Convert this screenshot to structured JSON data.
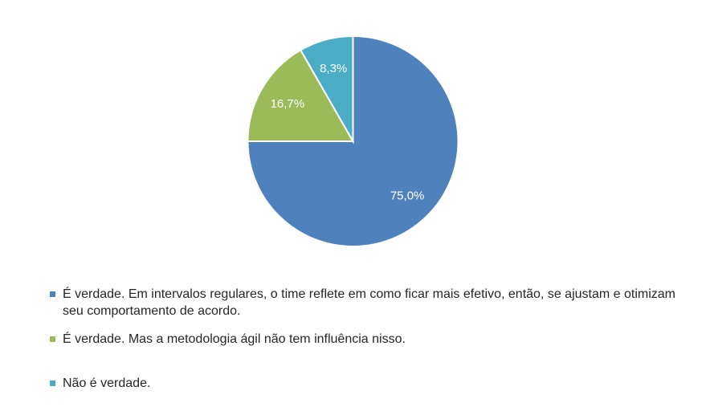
{
  "chart_data": {
    "type": "pie",
    "title": "",
    "slices": [
      {
        "label": "É verdade. Em intervalos regulares, o time reflete em como ficar mais efetivo, então, se ajustam e otimizam seu comportamento de acordo.",
        "value": 75.0,
        "display": "75,0%",
        "color": "#4F81BD"
      },
      {
        "label": "É verdade. Mas a metodologia ágil não tem influência nisso.",
        "value": 16.7,
        "display": "16,7%",
        "color": "#9BBB59"
      },
      {
        "label": "Não é verdade.",
        "value": 8.3,
        "display": "8,3%",
        "color": "#4BACC6"
      }
    ],
    "start_angle_deg": 0,
    "direction": "clockwise",
    "legend_position": "bottom",
    "data_label_color": "#FFFFFF"
  }
}
